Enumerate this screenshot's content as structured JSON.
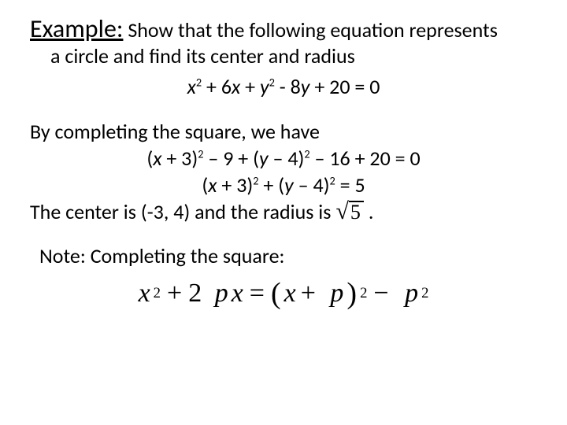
{
  "heading": {
    "example_label": "Example:",
    "rest1": " Show that the following equation represents",
    "line2": "a circle and find its center and radius"
  },
  "equation_main": "x² + 6x + y² - 8y + 20 = 0",
  "by_completing": "By completing the square, we have",
  "step1": "(x + 3)² – 9 + (y – 4)² – 16 + 20 = 0",
  "step2": "(x + 3)² + (y – 4)² = 5",
  "result_prefix": "The center is (-3, 4) and the radius is ",
  "radicand": "5",
  "result_suffix": " .",
  "note_label": "Note: Completing the square:",
  "formula": {
    "x": "x",
    "plus": "+",
    "two": "2",
    "p": "p",
    "eq": "=",
    "lpar": "(",
    "rpar": ")",
    "minus": "−"
  },
  "style": {
    "text_color": "#000000",
    "bg_color": "#ffffff",
    "base_fontsize": 26,
    "heading_fontsize": 32,
    "formula_fontsize": 34
  }
}
